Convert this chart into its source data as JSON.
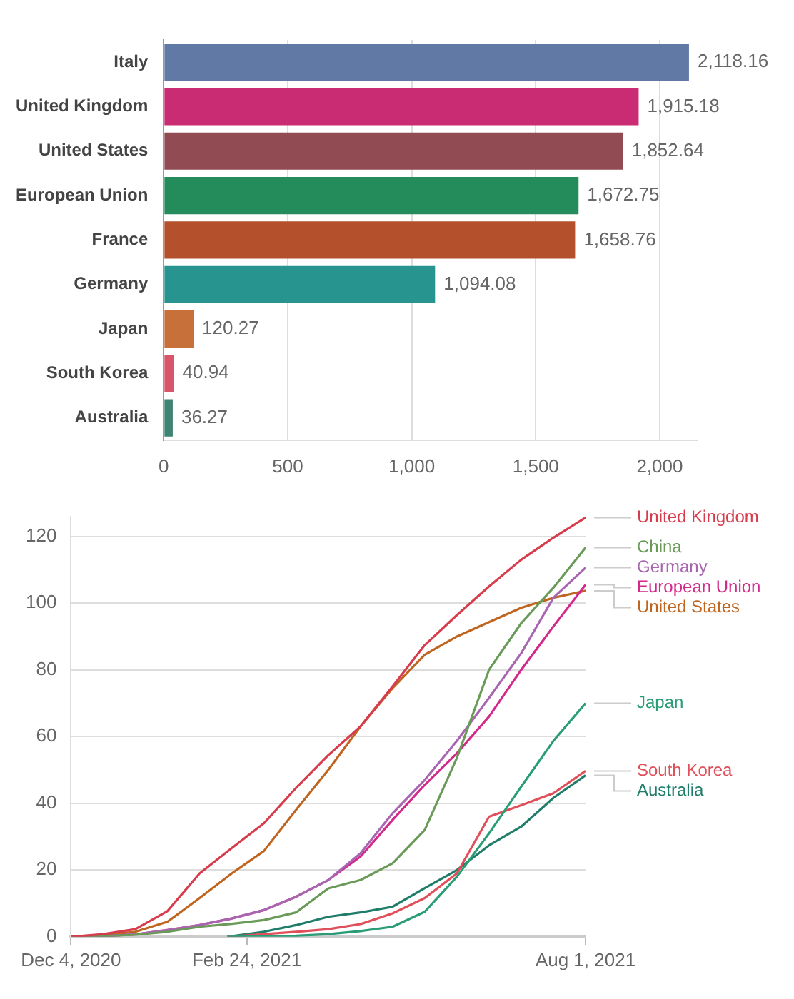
{
  "chart_data": [
    {
      "type": "bar",
      "orientation": "horizontal",
      "categories": [
        "Italy",
        "United Kingdom",
        "United States",
        "European Union",
        "France",
        "Germany",
        "Japan",
        "South Korea",
        "Australia"
      ],
      "values": [
        2118.16,
        1915.18,
        1852.64,
        1672.75,
        1658.76,
        1094.08,
        120.27,
        40.94,
        36.27
      ],
      "value_labels": [
        "2,118.16",
        "1,915.18",
        "1,852.64",
        "1,672.75",
        "1,658.76",
        "1,094.08",
        "120.27",
        "40.94",
        "36.27"
      ],
      "colors": [
        "#6079a5",
        "#c92c72",
        "#914b52",
        "#238c5a",
        "#b4502c",
        "#279490",
        "#c8703a",
        "#d9566a",
        "#3e8473"
      ],
      "xlim": [
        0,
        2150
      ],
      "xticks": [
        0,
        500,
        {
          "value": 1000,
          "label": "1,000"
        },
        {
          "value": 1500,
          "label": "1,500"
        },
        {
          "value": 2000,
          "label": "2,000"
        }
      ],
      "grid": "x"
    },
    {
      "type": "line",
      "marker": "none",
      "grid": "y",
      "xlim": [
        "2020-12-04",
        "2021-08-01"
      ],
      "xticks": [
        {
          "value": "2020-12-04",
          "label": "Dec 4, 2020"
        },
        {
          "value": "2021-02-24",
          "label": "Feb 24, 2021"
        },
        {
          "value": "2021-08-01",
          "label": "Aug 1, 2021"
        }
      ],
      "ylim": [
        0,
        126
      ],
      "yticks": [
        0,
        20,
        40,
        60,
        80,
        100,
        120
      ],
      "series": [
        {
          "name": "United Kingdom",
          "color": "#d73c4c",
          "x": [
            "2020-12-04",
            "2020-12-19",
            "2021-01-03",
            "2021-01-18",
            "2021-02-02",
            "2021-02-17",
            "2021-03-04",
            "2021-03-19",
            "2021-04-03",
            "2021-04-18",
            "2021-05-03",
            "2021-05-18",
            "2021-06-02",
            "2021-06-17",
            "2021-07-02",
            "2021-07-17",
            "2021-08-01"
          ],
          "values": [
            0,
            0.8,
            2.3,
            7.7,
            19,
            26.6,
            34,
            44.6,
            54.4,
            63,
            75,
            87.4,
            96.4,
            105,
            113,
            119.6,
            125.6
          ]
        },
        {
          "name": "China",
          "color": "#6a9a58",
          "x": [
            "2020-12-04",
            "2020-12-19",
            "2021-01-03",
            "2021-01-18",
            "2021-02-02",
            "2021-02-17",
            "2021-03-04",
            "2021-03-19",
            "2021-04-03",
            "2021-04-18",
            "2021-05-03",
            "2021-05-18",
            "2021-06-02",
            "2021-06-17",
            "2021-07-02",
            "2021-07-17",
            "2021-08-01"
          ],
          "values": [
            0,
            0.2,
            0.6,
            1.5,
            3,
            3.9,
            5,
            7.3,
            14.5,
            17,
            22,
            32,
            53.6,
            80,
            94,
            104.6,
            116.6
          ]
        },
        {
          "name": "Germany",
          "color": "#a866b1",
          "x": [
            "2020-12-04",
            "2020-12-19",
            "2021-01-03",
            "2021-01-18",
            "2021-02-02",
            "2021-02-17",
            "2021-03-04",
            "2021-03-19",
            "2021-04-03",
            "2021-04-18",
            "2021-05-03",
            "2021-05-18",
            "2021-06-02",
            "2021-06-17",
            "2021-07-02",
            "2021-07-17",
            "2021-08-01"
          ],
          "values": [
            0,
            0.2,
            0.7,
            2,
            3.5,
            5.5,
            8,
            12,
            17,
            25,
            37,
            47,
            58.7,
            71.6,
            85,
            101.6,
            110.6
          ]
        },
        {
          "name": "European Union",
          "color": "#d3298a",
          "x": [
            "2020-12-04",
            "2020-12-19",
            "2021-01-03",
            "2021-01-18",
            "2021-02-02",
            "2021-02-17",
            "2021-03-04",
            "2021-03-19",
            "2021-04-03",
            "2021-04-18",
            "2021-05-03",
            "2021-05-18",
            "2021-06-02",
            "2021-06-17",
            "2021-07-02",
            "2021-07-17",
            "2021-08-01"
          ],
          "values": [
            0,
            0.2,
            0.7,
            2,
            3.5,
            5.5,
            8,
            12,
            17,
            24,
            35,
            45.5,
            55,
            66,
            80,
            93,
            105.5
          ]
        },
        {
          "name": "United States",
          "color": "#c0651f",
          "x": [
            "2020-12-04",
            "2020-12-19",
            "2021-01-03",
            "2021-01-18",
            "2021-02-02",
            "2021-02-17",
            "2021-03-04",
            "2021-03-19",
            "2021-04-03",
            "2021-04-18",
            "2021-05-03",
            "2021-05-18",
            "2021-06-02",
            "2021-06-17",
            "2021-07-02",
            "2021-07-17",
            "2021-08-01"
          ],
          "values": [
            0,
            0.5,
            1.5,
            4.5,
            11.6,
            19,
            25.7,
            38,
            50,
            63,
            74.5,
            84.5,
            90,
            94.3,
            98.6,
            101.6,
            103.7
          ]
        },
        {
          "name": "Japan",
          "color": "#2a9d76",
          "x": [
            "2021-02-15",
            "2021-03-19",
            "2021-04-03",
            "2021-04-18",
            "2021-05-03",
            "2021-05-18",
            "2021-06-02",
            "2021-06-17",
            "2021-07-02",
            "2021-07-17",
            "2021-08-01"
          ],
          "values": [
            0,
            0.3,
            0.8,
            1.7,
            3,
            7.5,
            18,
            31,
            45,
            58.7,
            70
          ]
        },
        {
          "name": "South Korea",
          "color": "#e0505a",
          "x": [
            "2021-02-15",
            "2021-03-19",
            "2021-04-03",
            "2021-04-18",
            "2021-05-03",
            "2021-05-18",
            "2021-06-02",
            "2021-06-17",
            "2021-07-02",
            "2021-07-17",
            "2021-08-01"
          ],
          "values": [
            0,
            1.5,
            2.3,
            3.8,
            7,
            11.6,
            19,
            36,
            39.4,
            43,
            49.7
          ]
        },
        {
          "name": "Australia",
          "color": "#1f7d6a",
          "x": [
            "2021-02-15",
            "2021-03-04",
            "2021-03-19",
            "2021-04-03",
            "2021-04-18",
            "2021-05-03",
            "2021-05-18",
            "2021-06-02",
            "2021-06-17",
            "2021-07-02",
            "2021-07-17",
            "2021-08-01"
          ],
          "values": [
            0,
            1.5,
            3.5,
            6,
            7.3,
            9,
            14.6,
            20,
            27.4,
            33,
            41.6,
            48.4
          ]
        }
      ]
    }
  ]
}
